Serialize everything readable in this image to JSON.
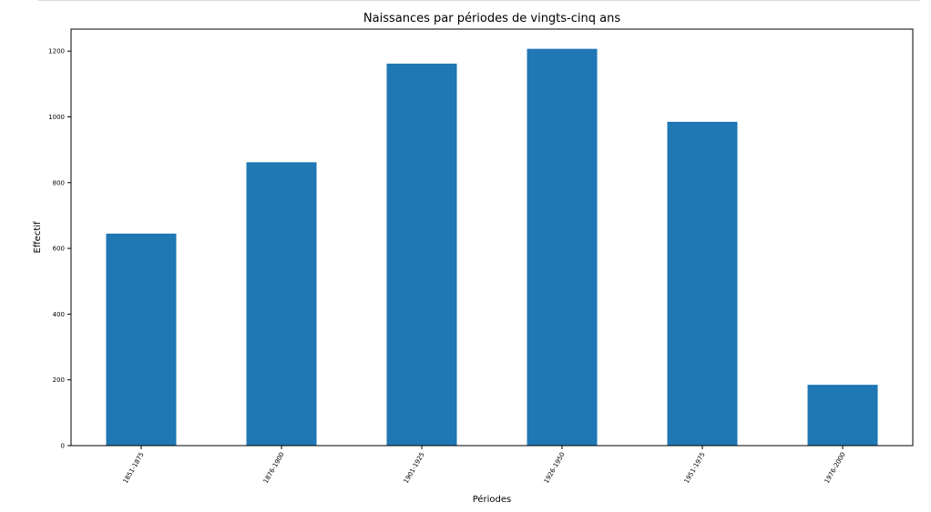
{
  "chart_data": {
    "type": "bar",
    "title": "Naissances par périodes de vingts-cinq ans",
    "xlabel": "Périodes",
    "ylabel": "Effectif",
    "categories": [
      "1851-1875",
      "1876-1900",
      "1901-1925",
      "1926-1950",
      "1951-1975",
      "1976-2000"
    ],
    "values": [
      645,
      862,
      1162,
      1207,
      985,
      185
    ],
    "ylim": [
      0,
      1267
    ],
    "yticks": [
      0,
      200,
      400,
      600,
      800,
      1000,
      1200
    ],
    "grid": false,
    "legend": "none",
    "bar_color": "#1f77b4",
    "axis_color": "#000000"
  }
}
